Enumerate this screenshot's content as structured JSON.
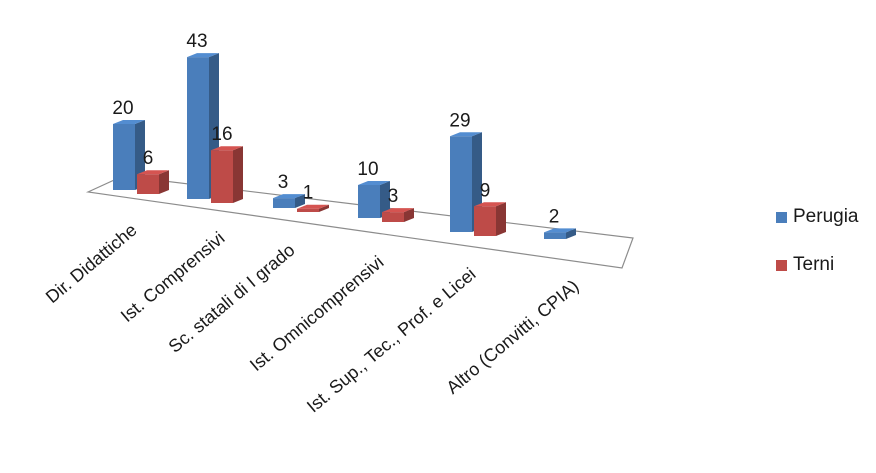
{
  "chart_data": {
    "type": "bar",
    "categories": [
      "Dir. Didattiche",
      "Ist. Comprensivi",
      "Sc. statali di I grado",
      "Ist. Omnicomprensivi",
      "Ist. Sup., Tec., Prof. e Licei",
      "Altro (Convitti, CPIA)"
    ],
    "series": [
      {
        "name": "Perugia",
        "values": [
          20,
          43,
          3,
          10,
          29,
          2
        ],
        "labels": [
          "20",
          "43",
          "3",
          "10",
          "29",
          "2"
        ],
        "color": "#4a7ebb"
      },
      {
        "name": "Terni",
        "values": [
          6,
          16,
          1,
          3,
          9,
          null
        ],
        "labels": [
          "6",
          "16",
          "1",
          "3",
          "9",
          ""
        ],
        "color": "#be4b48"
      }
    ],
    "legend_position": "right",
    "grid": false,
    "three_d": true
  }
}
